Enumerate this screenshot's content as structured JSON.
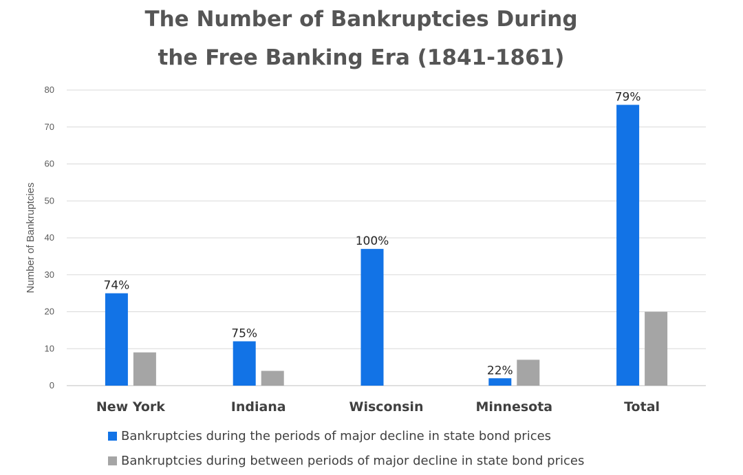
{
  "chart_data": {
    "type": "bar",
    "title": "The Number of Bankruptcies During the Free Banking Era (1841-1861)",
    "title_lines": [
      "The Number of Bankruptcies During",
      "the Free Banking Era (1841-1861)"
    ],
    "xlabel": "",
    "ylabel": "Number of Bankruptcies",
    "ylim": [
      0,
      80
    ],
    "yticks": [
      0,
      10,
      20,
      30,
      40,
      50,
      60,
      70,
      80
    ],
    "grid": true,
    "legend_position": "bottom",
    "categories": [
      "New York",
      "Indiana",
      "Wisconsin",
      "Minnesota",
      "Total"
    ],
    "series": [
      {
        "name": "Bankruptcies during the periods of major decline in state bond prices",
        "color": "#1273E6",
        "values": [
          25,
          12,
          37,
          2,
          76
        ],
        "data_labels": [
          "74%",
          "75%",
          "100%",
          "22%",
          "79%"
        ]
      },
      {
        "name": "Bankruptcies during between periods of major decline in state bond prices",
        "color": "#A5A5A5",
        "values": [
          9,
          4,
          0,
          7,
          20
        ],
        "data_labels": [
          "",
          "",
          "",
          "",
          ""
        ]
      }
    ]
  }
}
